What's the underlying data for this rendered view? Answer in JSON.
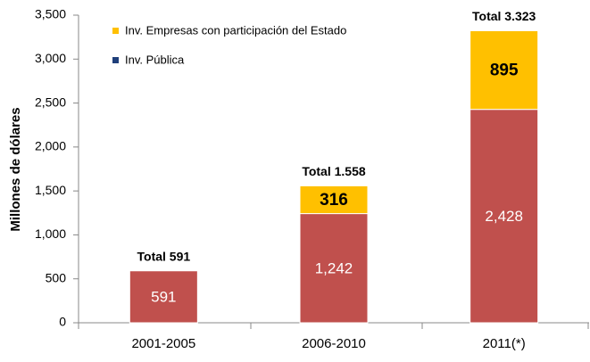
{
  "chart_data": {
    "type": "stacked_bar",
    "y_label": "Millones de dólares",
    "categories": [
      "2001-2005",
      "2006-2010",
      "2011(*)"
    ],
    "series": [
      {
        "name": "Inv. Empresas con participación del Estado",
        "color": "#ffc000",
        "legend_color": "#ffc000",
        "values": [
          null,
          316,
          895
        ]
      },
      {
        "name": "Inv. Pública",
        "color": "#c0504d",
        "legend_color": "#1f3f7a",
        "values": [
          591,
          1242,
          2428
        ],
        "value_labels": [
          "591",
          "1,242",
          "2,428"
        ]
      }
    ],
    "annotations": [
      "Total 591",
      "Total 1.558",
      "Total 3.323"
    ],
    "ylim": [
      0,
      3500
    ],
    "yticks": [
      0,
      500,
      {
        "value": 1000,
        "label": "1,000"
      },
      {
        "value": 1500,
        "label": "1,500"
      },
      {
        "value": 2000,
        "label": "2,000"
      },
      {
        "value": 2500,
        "label": "2,500"
      },
      {
        "value": 3000,
        "label": "3,000"
      },
      {
        "value": 3500,
        "label": "3,500"
      }
    ],
    "legend": "upper left"
  }
}
